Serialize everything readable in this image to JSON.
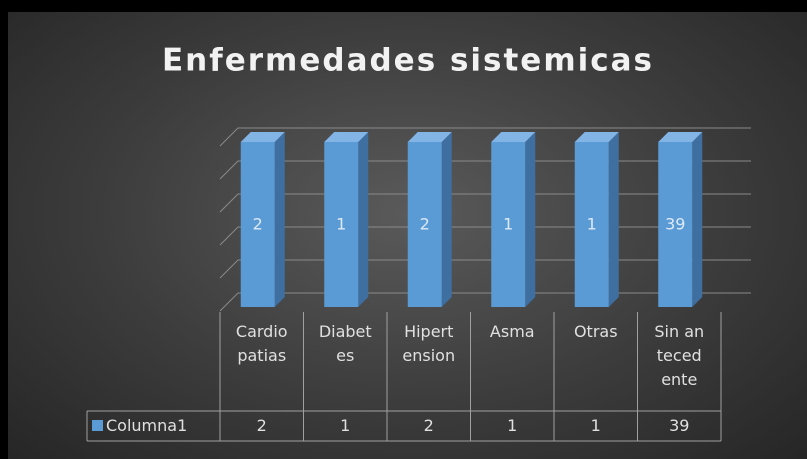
{
  "chart_data": {
    "type": "bar3d",
    "title": "Enfermedades sistemicas",
    "categories": [
      "Cardiopatias",
      "Diabetes",
      "Hipertension",
      "Asma",
      "Otras",
      "Sin antecedente"
    ],
    "series": [
      {
        "name": "Columna1",
        "color": "#5b9bd5",
        "values": [
          2,
          1,
          2,
          1,
          1,
          39
        ]
      }
    ],
    "ylim": [
      0,
      1
    ],
    "yticks": [
      0,
      0.2,
      0.4,
      0.6,
      0.8,
      1
    ],
    "grid": true,
    "data_table": true
  }
}
